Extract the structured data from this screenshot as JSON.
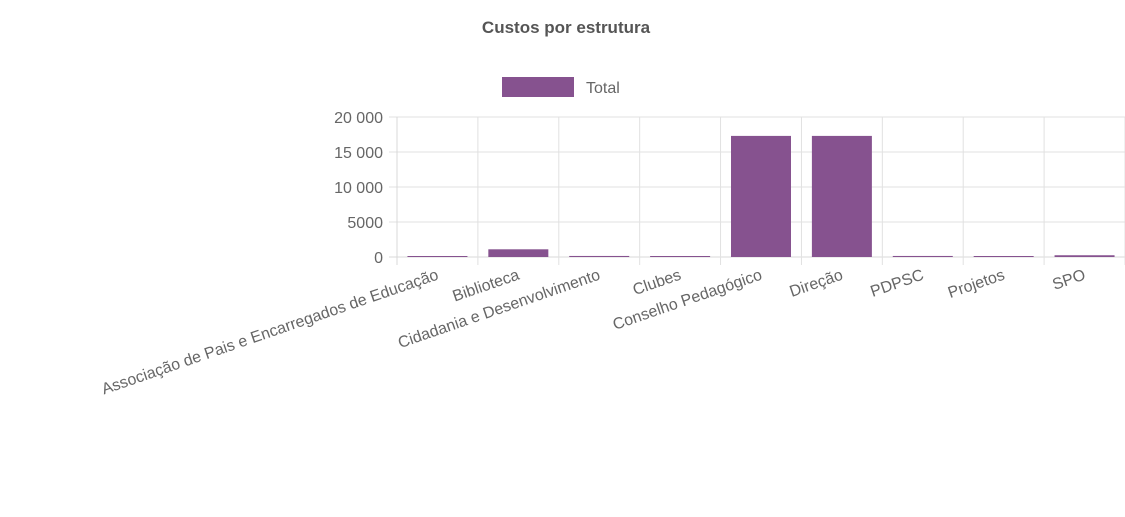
{
  "chart_data": {
    "type": "bar",
    "title": "Custos por estrutura",
    "xlabel": "",
    "ylabel": "",
    "categories": [
      "Associação de Pais e Encarregados de Educação",
      "Biblioteca",
      "Cidadania e Desenvolvimento",
      "Clubes",
      "Conselho Pedagógico",
      "Direção",
      "PDPSC",
      "Projetos",
      "SPO"
    ],
    "series": [
      {
        "name": "Total",
        "color": "#86528f",
        "values": [
          50,
          1100,
          150,
          80,
          17300,
          17300,
          150,
          40,
          250
        ]
      }
    ],
    "ylim": [
      0,
      20000
    ],
    "yticks": [
      0,
      5000,
      10000,
      15000,
      20000
    ],
    "ytick_labels": [
      "0",
      "5000",
      "10 000",
      "15 000",
      "20 000"
    ],
    "grid": true,
    "legend_position": "top"
  }
}
